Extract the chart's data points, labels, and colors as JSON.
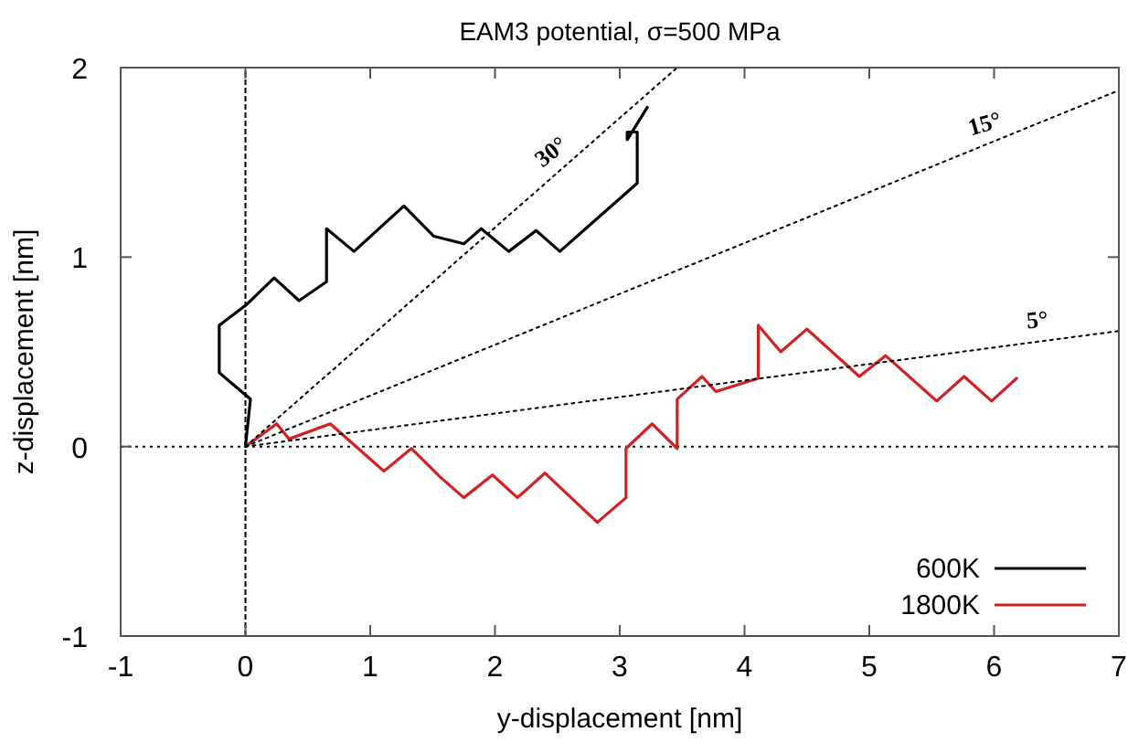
{
  "chart_data": {
    "type": "line",
    "title": "EAM3 potential, σ=500 MPa",
    "xlabel": "y-displacement [nm]",
    "ylabel": "z-displacement [nm]",
    "xlim": [
      -1,
      7
    ],
    "ylim": [
      -1,
      2
    ],
    "xticks": [
      -1,
      0,
      1,
      2,
      3,
      4,
      5,
      6,
      7
    ],
    "yticks": [
      -1,
      0,
      1,
      2
    ],
    "grid": false,
    "legend": "bottom right",
    "marker": "none",
    "line_style": "solid",
    "series": [
      {
        "name": "600K",
        "color": "#000000",
        "x": [
          0,
          0.04,
          -0.21,
          -0.21,
          0.01,
          0.23,
          0.43,
          0.65,
          0.65,
          0.87,
          1.27,
          1.51,
          1.75,
          1.89,
          2.11,
          2.33,
          2.52,
          3.14,
          3.14,
          3.06,
          3.06,
          3.22
        ],
        "values": [
          0,
          0.25,
          0.39,
          0.64,
          0.75,
          0.89,
          0.77,
          0.87,
          1.15,
          1.03,
          1.27,
          1.11,
          1.07,
          1.15,
          1.03,
          1.14,
          1.03,
          1.39,
          1.66,
          1.66,
          1.62,
          1.79
        ]
      },
      {
        "name": "1800K",
        "color": "#d42020",
        "x": [
          0,
          0.25,
          0.35,
          0.68,
          1.11,
          1.33,
          1.56,
          1.75,
          1.98,
          2.18,
          2.4,
          2.82,
          3.05,
          3.05,
          3.26,
          3.46,
          3.46,
          3.66,
          3.77,
          4.11,
          4.11,
          4.29,
          4.5,
          4.92,
          5.13,
          5.54,
          5.76,
          5.98,
          6.18
        ],
        "values": [
          0,
          0.12,
          0.04,
          0.12,
          -0.13,
          -0.01,
          -0.16,
          -0.27,
          -0.15,
          -0.27,
          -0.14,
          -0.4,
          -0.27,
          -0.01,
          0.12,
          -0.01,
          0.25,
          0.37,
          0.29,
          0.36,
          0.64,
          0.5,
          0.62,
          0.37,
          0.48,
          0.24,
          0.37,
          0.24,
          0.36
        ]
      },
      {
        "color": "#000000",
        "line_style": "dotted",
        "x": [
          0,
          3.46
        ],
        "values": [
          0,
          2
        ]
      },
      {
        "color": "#000000",
        "line_style": "dotted",
        "x": [
          0,
          7
        ],
        "values": [
          0,
          1.88
        ]
      },
      {
        "color": "#000000",
        "line_style": "dotted",
        "x": [
          0,
          7
        ],
        "values": [
          0,
          0.61
        ]
      }
    ],
    "ref_lines": [
      {
        "axis": "x",
        "value": 0,
        "color": "#000000",
        "line_style": "dashed"
      },
      {
        "axis": "y",
        "value": 0,
        "color": "#000000",
        "line_style": "dotted"
      }
    ],
    "annotations": [
      {
        "text": "30°",
        "x": 2.55,
        "y": 1.47
      },
      {
        "text": "15°",
        "x": 5.97,
        "y": 1.6
      },
      {
        "text": "5°",
        "x": 6.36,
        "y": 0.56
      }
    ]
  }
}
